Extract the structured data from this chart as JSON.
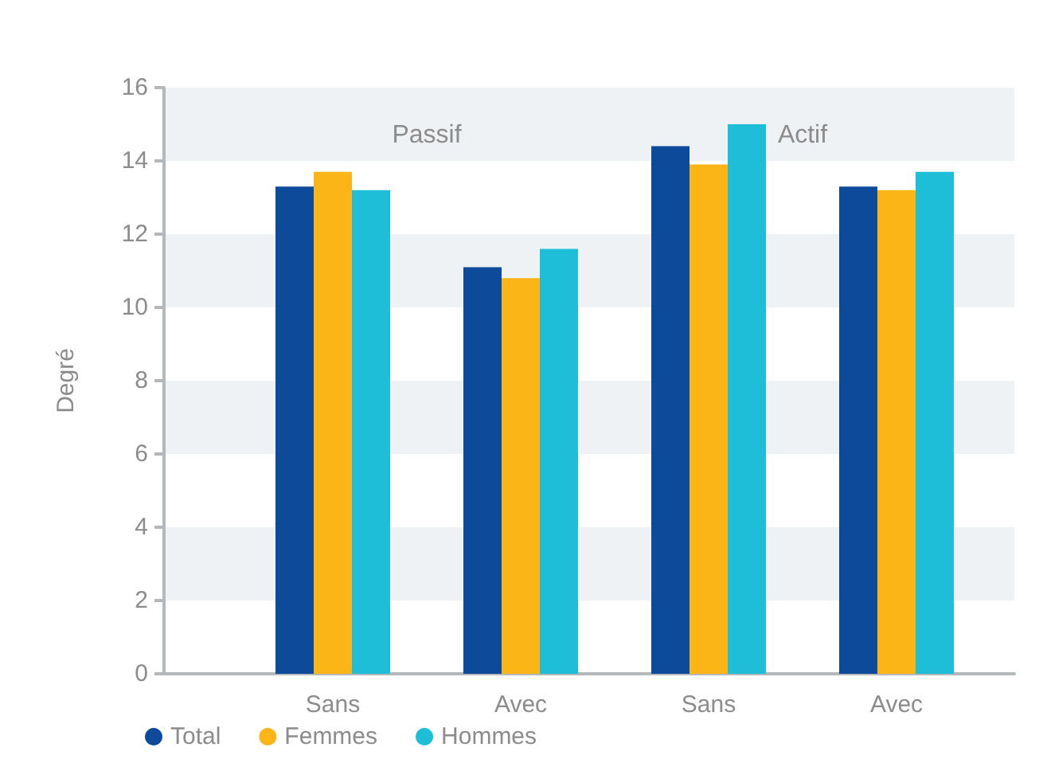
{
  "chart_data": {
    "type": "bar",
    "ylabel": "Degré",
    "categories": [
      "Sans",
      "Avec",
      "Sans",
      "Avec"
    ],
    "series": [
      {
        "name": "Total",
        "color": "#0d4a9a",
        "values": [
          13.3,
          11.1,
          14.4,
          13.3
        ]
      },
      {
        "name": "Femmes",
        "color": "#fbb516",
        "values": [
          13.7,
          10.8,
          13.9,
          13.2
        ]
      },
      {
        "name": "Hommes",
        "color": "#1ebed9",
        "values": [
          13.2,
          11.6,
          15.0,
          13.7
        ]
      }
    ],
    "ylim": [
      0,
      16
    ],
    "yticks": [
      0,
      2,
      4,
      6,
      8,
      10,
      12,
      14,
      16
    ],
    "bands": [
      {
        "axis": "y",
        "from": 2,
        "to": 4,
        "color": "#eef2f5"
      },
      {
        "axis": "y",
        "from": 6,
        "to": 8,
        "color": "#eef2f5"
      },
      {
        "axis": "y",
        "from": 10,
        "to": 12,
        "color": "#eef2f5"
      },
      {
        "axis": "y",
        "from": 14,
        "to": 16,
        "color": "#eef2f5"
      }
    ],
    "legend": "bottom left",
    "annotations": [
      "Passif",
      "Actif"
    ]
  }
}
